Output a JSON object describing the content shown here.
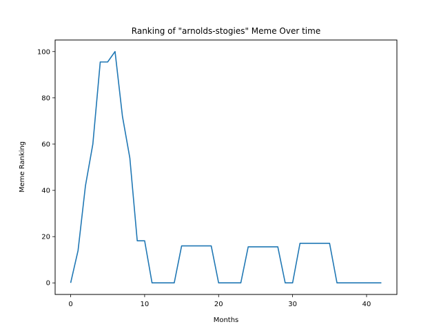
{
  "chart_data": {
    "type": "line",
    "title": "Ranking of \"arnolds-stogies\" Meme Over time",
    "xlabel": "Months",
    "ylabel": "Meme Ranking",
    "xlim": [
      -2.1,
      44.1
    ],
    "ylim": [
      -5,
      105
    ],
    "xticks": [
      0,
      10,
      20,
      30,
      40
    ],
    "yticks": [
      0,
      20,
      40,
      60,
      80,
      100
    ],
    "grid": false,
    "series": [
      {
        "color": "#1f77b4",
        "x": [
          0,
          1,
          2,
          3,
          4,
          5,
          6,
          7,
          8,
          9,
          10,
          11,
          12,
          13,
          14,
          15,
          16,
          17,
          18,
          19,
          20,
          21,
          22,
          23,
          24,
          25,
          26,
          27,
          28,
          29,
          30,
          31,
          32,
          33,
          34,
          35,
          36,
          37,
          38,
          39,
          40,
          41,
          42
        ],
        "y": [
          0,
          14,
          42,
          60,
          95.5,
          95.5,
          100,
          72,
          54,
          18.2,
          18.2,
          0,
          0,
          0,
          0,
          16,
          16,
          16,
          16,
          16,
          0,
          0,
          0,
          0,
          15.6,
          15.6,
          15.6,
          15.6,
          15.6,
          0,
          0,
          17.1,
          17.1,
          17.1,
          17.1,
          17.1,
          0,
          0,
          0,
          0,
          0,
          0,
          0
        ]
      }
    ]
  }
}
